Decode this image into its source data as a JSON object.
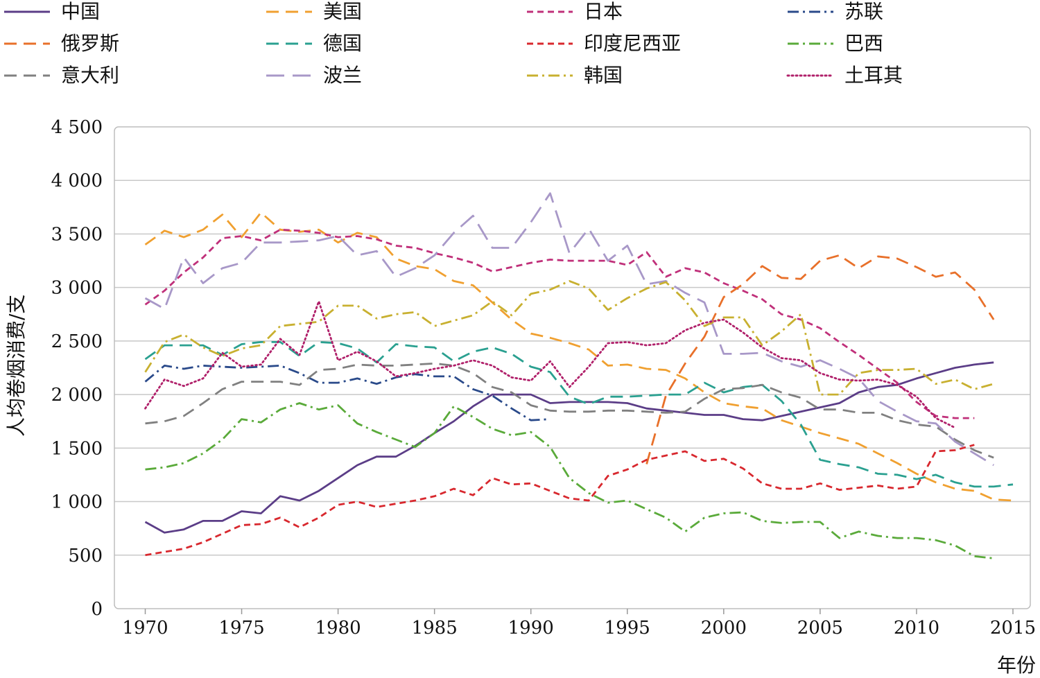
{
  "chart_data": {
    "type": "line",
    "xlabel": "年份",
    "ylabel": "人均卷烟消费/支",
    "xlim": [
      1970,
      2015
    ],
    "ylim": [
      0,
      4500
    ],
    "x_ticks": [
      1970,
      1975,
      1980,
      1985,
      1990,
      1995,
      2000,
      2005,
      2010,
      2015
    ],
    "y_ticks": [
      "0",
      "500",
      "1 000",
      "1 500",
      "2 000",
      "2 500",
      "3 000",
      "3 500",
      "4 000",
      "4 500"
    ],
    "y_tick_values": [
      0,
      500,
      1000,
      1500,
      2000,
      2500,
      3000,
      3500,
      4000,
      4500
    ],
    "grid": "horizontal",
    "legend_placement": "top",
    "series": [
      {
        "name": "中国",
        "color": "#5b3d87",
        "dash": "solid",
        "x": [
          1970,
          1971,
          1972,
          1973,
          1974,
          1975,
          1976,
          1977,
          1978,
          1979,
          1980,
          1981,
          1982,
          1983,
          1984,
          1985,
          1986,
          1987,
          1988,
          1989,
          1990,
          1991,
          1992,
          1993,
          1994,
          1995,
          1996,
          1997,
          1998,
          1999,
          2000,
          2001,
          2002,
          2003,
          2004,
          2005,
          2006,
          2007,
          2008,
          2009,
          2010,
          2011,
          2012,
          2013,
          2014
        ],
        "y": [
          810,
          710,
          740,
          820,
          820,
          910,
          890,
          1050,
          1010,
          1100,
          1220,
          1340,
          1420,
          1420,
          1520,
          1640,
          1750,
          1890,
          2000,
          2000,
          2000,
          1920,
          1930,
          1930,
          1930,
          1920,
          1870,
          1850,
          1830,
          1810,
          1810,
          1770,
          1760,
          1800,
          1840,
          1880,
          1920,
          2020,
          2070,
          2090,
          2150,
          2200,
          2250,
          2280,
          2300
        ]
      },
      {
        "name": "美国",
        "color": "#f0a030",
        "dash": "long",
        "x": [
          1970,
          1971,
          1972,
          1973,
          1974,
          1975,
          1976,
          1977,
          1978,
          1979,
          1980,
          1981,
          1982,
          1983,
          1984,
          1985,
          1986,
          1987,
          1988,
          1989,
          1990,
          1991,
          1992,
          1993,
          1994,
          1995,
          1996,
          1997,
          1998,
          1999,
          2000,
          2001,
          2002,
          2003,
          2004,
          2005,
          2006,
          2007,
          2008,
          2009,
          2010,
          2011,
          2012,
          2013,
          2014,
          2015
        ],
        "y": [
          3400,
          3530,
          3470,
          3540,
          3680,
          3470,
          3700,
          3540,
          3520,
          3540,
          3420,
          3510,
          3470,
          3270,
          3200,
          3170,
          3060,
          3020,
          2860,
          2700,
          2570,
          2530,
          2480,
          2420,
          2270,
          2280,
          2240,
          2230,
          2150,
          2020,
          1920,
          1890,
          1870,
          1760,
          1700,
          1640,
          1590,
          1540,
          1450,
          1360,
          1260,
          1180,
          1120,
          1100,
          1020,
          1010
        ]
      },
      {
        "name": "日本",
        "color": "#c0307a",
        "dash": "short",
        "x": [
          1970,
          1971,
          1972,
          1973,
          1974,
          1975,
          1976,
          1977,
          1978,
          1979,
          1980,
          1981,
          1982,
          1983,
          1984,
          1985,
          1986,
          1987,
          1988,
          1989,
          1990,
          1991,
          1992,
          1993,
          1994,
          1995,
          1996,
          1997,
          1998,
          1999,
          2000,
          2001,
          2002,
          2003,
          2004,
          2005,
          2006,
          2007,
          2008,
          2009,
          2010,
          2011,
          2012,
          2013
        ],
        "y": [
          2840,
          2970,
          3140,
          3280,
          3460,
          3480,
          3440,
          3540,
          3530,
          3510,
          3470,
          3480,
          3450,
          3390,
          3370,
          3320,
          3280,
          3230,
          3150,
          3190,
          3230,
          3260,
          3250,
          3250,
          3250,
          3210,
          3330,
          3100,
          3180,
          3140,
          3040,
          2970,
          2890,
          2750,
          2700,
          2620,
          2490,
          2370,
          2240,
          2110,
          1930,
          1800,
          1780,
          1780
        ]
      },
      {
        "name": "苏联",
        "color": "#2a4a8a",
        "dash": "dashdot",
        "x": [
          1970,
          1971,
          1972,
          1973,
          1974,
          1975,
          1976,
          1977,
          1978,
          1979,
          1980,
          1981,
          1982,
          1983,
          1984,
          1985,
          1986,
          1987,
          1988,
          1989,
          1990,
          1991
        ],
        "y": [
          2120,
          2270,
          2240,
          2270,
          2260,
          2250,
          2260,
          2270,
          2200,
          2110,
          2110,
          2150,
          2100,
          2160,
          2190,
          2170,
          2170,
          2050,
          1990,
          1870,
          1760,
          1770
        ]
      },
      {
        "name": "俄罗斯",
        "color": "#e8702a",
        "dash": "long",
        "x": [
          1996,
          1997,
          1998,
          1999,
          2000,
          2001,
          2002,
          2003,
          2004,
          2005,
          2006,
          2007,
          2008,
          2009,
          2010,
          2011,
          2012,
          2013,
          2014
        ],
        "y": [
          1350,
          1990,
          2290,
          2540,
          2910,
          3030,
          3200,
          3090,
          3080,
          3250,
          3300,
          3180,
          3290,
          3270,
          3190,
          3100,
          3140,
          2980,
          2700
        ]
      },
      {
        "name": "德国",
        "color": "#2aa090",
        "dash": "long",
        "x": [
          1970,
          1971,
          1972,
          1973,
          1974,
          1975,
          1976,
          1977,
          1978,
          1979,
          1980,
          1981,
          1982,
          1983,
          1984,
          1985,
          1986,
          1987,
          1988,
          1989,
          1990,
          1991,
          1992,
          1993,
          1994,
          1995,
          1996,
          1997,
          1998,
          1999,
          2000,
          2001,
          2002,
          2003,
          2004,
          2005,
          2006,
          2007,
          2008,
          2009,
          2010,
          2011,
          2012,
          2013,
          2014,
          2015
        ],
        "y": [
          2330,
          2460,
          2460,
          2460,
          2370,
          2470,
          2490,
          2490,
          2360,
          2490,
          2480,
          2430,
          2300,
          2470,
          2450,
          2440,
          2310,
          2400,
          2440,
          2380,
          2260,
          2210,
          1980,
          1910,
          1980,
          1980,
          1990,
          2000,
          2000,
          2110,
          2020,
          2070,
          2090,
          1940,
          1720,
          1390,
          1350,
          1320,
          1260,
          1250,
          1210,
          1250,
          1180,
          1140,
          1140,
          1160
        ]
      },
      {
        "name": "印度尼西亚",
        "color": "#d8282e",
        "dash": "short",
        "x": [
          1970,
          1971,
          1972,
          1973,
          1974,
          1975,
          1976,
          1977,
          1978,
          1979,
          1980,
          1981,
          1982,
          1983,
          1984,
          1985,
          1986,
          1987,
          1988,
          1989,
          1990,
          1991,
          1992,
          1993,
          1994,
          1995,
          1996,
          1997,
          1998,
          1999,
          2000,
          2001,
          2002,
          2003,
          2004,
          2005,
          2006,
          2007,
          2008,
          2009,
          2010,
          2011,
          2012,
          2013
        ],
        "y": [
          500,
          530,
          560,
          620,
          700,
          780,
          790,
          850,
          760,
          850,
          970,
          1000,
          950,
          980,
          1010,
          1050,
          1120,
          1060,
          1220,
          1160,
          1170,
          1100,
          1030,
          1010,
          1240,
          1300,
          1390,
          1430,
          1470,
          1380,
          1400,
          1310,
          1170,
          1120,
          1120,
          1170,
          1110,
          1130,
          1150,
          1120,
          1140,
          1470,
          1480,
          1530
        ]
      },
      {
        "name": "巴西",
        "color": "#5aaa3a",
        "dash": "dashdot",
        "x": [
          1970,
          1971,
          1972,
          1973,
          1974,
          1975,
          1976,
          1977,
          1978,
          1979,
          1980,
          1981,
          1982,
          1983,
          1984,
          1985,
          1986,
          1987,
          1988,
          1989,
          1990,
          1991,
          1992,
          1993,
          1994,
          1995,
          1996,
          1997,
          1998,
          1999,
          2000,
          2001,
          2002,
          2003,
          2004,
          2005,
          2006,
          2007,
          2008,
          2009,
          2010,
          2011,
          2012,
          2013,
          2014
        ],
        "y": [
          1300,
          1320,
          1360,
          1450,
          1580,
          1770,
          1740,
          1860,
          1920,
          1860,
          1900,
          1730,
          1650,
          1580,
          1510,
          1640,
          1890,
          1790,
          1680,
          1620,
          1650,
          1510,
          1220,
          1080,
          990,
          1010,
          930,
          850,
          720,
          850,
          890,
          900,
          820,
          800,
          810,
          810,
          660,
          720,
          680,
          660,
          660,
          640,
          590,
          490,
          470
        ]
      },
      {
        "name": "意大利",
        "color": "#808080",
        "dash": "long",
        "x": [
          1970,
          1971,
          1972,
          1973,
          1974,
          1975,
          1976,
          1977,
          1978,
          1979,
          1980,
          1981,
          1982,
          1983,
          1984,
          1985,
          1986,
          1987,
          1988,
          1989,
          1990,
          1991,
          1992,
          1993,
          1994,
          1995,
          1996,
          1997,
          1998,
          1999,
          2000,
          2001,
          2002,
          2003,
          2004,
          2005,
          2006,
          2007,
          2008,
          2009,
          2010,
          2011,
          2012,
          2013,
          2014
        ],
        "y": [
          1730,
          1750,
          1800,
          1920,
          2050,
          2120,
          2120,
          2120,
          2090,
          2230,
          2240,
          2280,
          2270,
          2270,
          2280,
          2290,
          2270,
          2200,
          2070,
          2020,
          1900,
          1850,
          1840,
          1840,
          1850,
          1850,
          1840,
          1830,
          1840,
          1960,
          2050,
          2060,
          2090,
          2020,
          1970,
          1860,
          1860,
          1830,
          1830,
          1760,
          1720,
          1700,
          1580,
          1480,
          1410
        ]
      },
      {
        "name": "波兰",
        "color": "#a898c8",
        "dash": "xlong",
        "x": [
          1970,
          1971,
          1972,
          1973,
          1974,
          1975,
          1976,
          1977,
          1978,
          1979,
          1980,
          1981,
          1982,
          1983,
          1984,
          1985,
          1986,
          1987,
          1988,
          1989,
          1990,
          1991,
          1992,
          1993,
          1994,
          1995,
          1996,
          1997,
          1998,
          1999,
          2000,
          2001,
          2002,
          2003,
          2004,
          2005,
          2006,
          2007,
          2008,
          2009,
          2010,
          2011,
          2012,
          2013,
          2014
        ],
        "y": [
          2900,
          2800,
          3280,
          3040,
          3180,
          3230,
          3420,
          3420,
          3430,
          3440,
          3480,
          3300,
          3340,
          3100,
          3180,
          3300,
          3510,
          3670,
          3370,
          3370,
          3610,
          3880,
          3320,
          3550,
          3250,
          3390,
          3030,
          3060,
          2950,
          2860,
          2380,
          2380,
          2390,
          2310,
          2260,
          2320,
          2240,
          2150,
          1940,
          1840,
          1750,
          1730,
          1560,
          1450,
          1340
        ]
      },
      {
        "name": "韩国",
        "color": "#c8b030",
        "dash": "dashdot",
        "x": [
          1970,
          1971,
          1972,
          1973,
          1974,
          1975,
          1976,
          1977,
          1978,
          1979,
          1980,
          1981,
          1982,
          1983,
          1984,
          1985,
          1986,
          1987,
          1988,
          1989,
          1990,
          1991,
          1992,
          1993,
          1994,
          1995,
          1996,
          1997,
          1998,
          1999,
          2000,
          2001,
          2002,
          2003,
          2004,
          2005,
          2006,
          2007,
          2008,
          2009,
          2010,
          2011,
          2012,
          2013,
          2014
        ],
        "y": [
          2210,
          2490,
          2560,
          2440,
          2360,
          2430,
          2460,
          2640,
          2660,
          2680,
          2830,
          2830,
          2710,
          2750,
          2770,
          2640,
          2690,
          2740,
          2870,
          2740,
          2940,
          2980,
          3060,
          2990,
          2790,
          2900,
          2990,
          3050,
          2880,
          2640,
          2720,
          2720,
          2460,
          2590,
          2750,
          2000,
          2000,
          2200,
          2230,
          2230,
          2240,
          2100,
          2140,
          2050,
          2100
        ]
      },
      {
        "name": "土耳其",
        "color": "#b0206a",
        "dash": "dotted",
        "x": [
          1970,
          1971,
          1972,
          1973,
          1974,
          1975,
          1976,
          1977,
          1978,
          1979,
          1980,
          1981,
          1982,
          1983,
          1984,
          1985,
          1986,
          1987,
          1988,
          1989,
          1990,
          1991,
          1992,
          1993,
          1994,
          1995,
          1996,
          1997,
          1998,
          1999,
          2000,
          2001,
          2002,
          2003,
          2004,
          2005,
          2006,
          2007,
          2008,
          2009,
          2010,
          2011,
          2012
        ],
        "y": [
          1870,
          2140,
          2080,
          2150,
          2390,
          2260,
          2280,
          2520,
          2370,
          2870,
          2320,
          2400,
          2310,
          2170,
          2200,
          2240,
          2270,
          2320,
          2270,
          2160,
          2130,
          2310,
          2070,
          2260,
          2480,
          2490,
          2460,
          2480,
          2600,
          2670,
          2700,
          2580,
          2440,
          2340,
          2320,
          2200,
          2140,
          2130,
          2140,
          2090,
          1980,
          1780,
          1690
        ]
      }
    ]
  }
}
